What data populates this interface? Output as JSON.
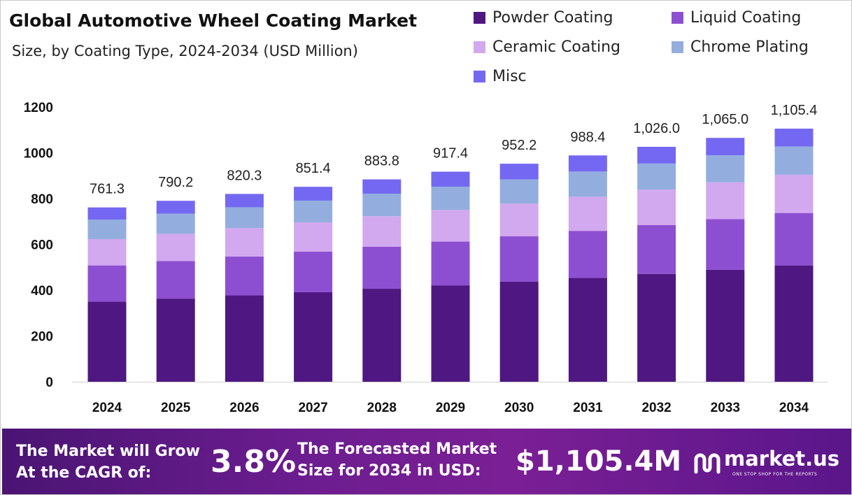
{
  "chart_data": {
    "type": "bar",
    "stacked": true,
    "title": "Global Automotive Wheel Coating Market",
    "subtitle": "Size, by Coating Type, 2024-2034 (USD Million)",
    "categories": [
      "2024",
      "2025",
      "2026",
      "2027",
      "2028",
      "2029",
      "2030",
      "2031",
      "2032",
      "2033",
      "2034"
    ],
    "series": [
      {
        "name": "Powder Coating",
        "color": "#4e1782",
        "values": [
          350,
          363,
          377,
          391,
          406,
          421,
          437,
          454,
          471,
          489,
          508
        ]
      },
      {
        "name": "Liquid Coating",
        "color": "#8d4fd1",
        "values": [
          158,
          164,
          170,
          177,
          184,
          191,
          198,
          205,
          213,
          221,
          229
        ]
      },
      {
        "name": "Ceramic Coating",
        "color": "#d2a8ef",
        "values": [
          115,
          119,
          124,
          128,
          133,
          138,
          143,
          149,
          155,
          161,
          167
        ]
      },
      {
        "name": "Chrome Plating",
        "color": "#93aede",
        "values": [
          85,
          88,
          91,
          95,
          98,
          102,
          106,
          110,
          114,
          118,
          123
        ]
      },
      {
        "name": "Misc",
        "color": "#7468f2",
        "values": [
          53.3,
          56.2,
          58.3,
          60.4,
          62.8,
          65.4,
          68.2,
          70.4,
          73.0,
          76.0,
          78.4
        ]
      }
    ],
    "totals": [
      "761.3",
      "790.2",
      "820.3",
      "851.4",
      "883.8",
      "917.4",
      "952.2",
      "988.4",
      "1,026.0",
      "1,065.0",
      "1,105.4"
    ],
    "yticks": [
      "0",
      "200",
      "400",
      "600",
      "800",
      "1000",
      "1200"
    ],
    "ylim": [
      0,
      1200
    ],
    "grid": false,
    "legend": "top-right"
  },
  "banner": {
    "cagr_label_line1": "The Market will Grow",
    "cagr_label_line2": "At the CAGR of:",
    "cagr_value": "3.8%",
    "forecast_label_line1": "The Forecasted Market",
    "forecast_label_line2": "Size for 2034 in USD:",
    "forecast_value": "$1,105.4M",
    "brand_name": "market.us",
    "brand_tagline": "ONE STOP SHOP FOR THE REPORTS",
    "brand_icon": "market-us-logo-icon"
  }
}
